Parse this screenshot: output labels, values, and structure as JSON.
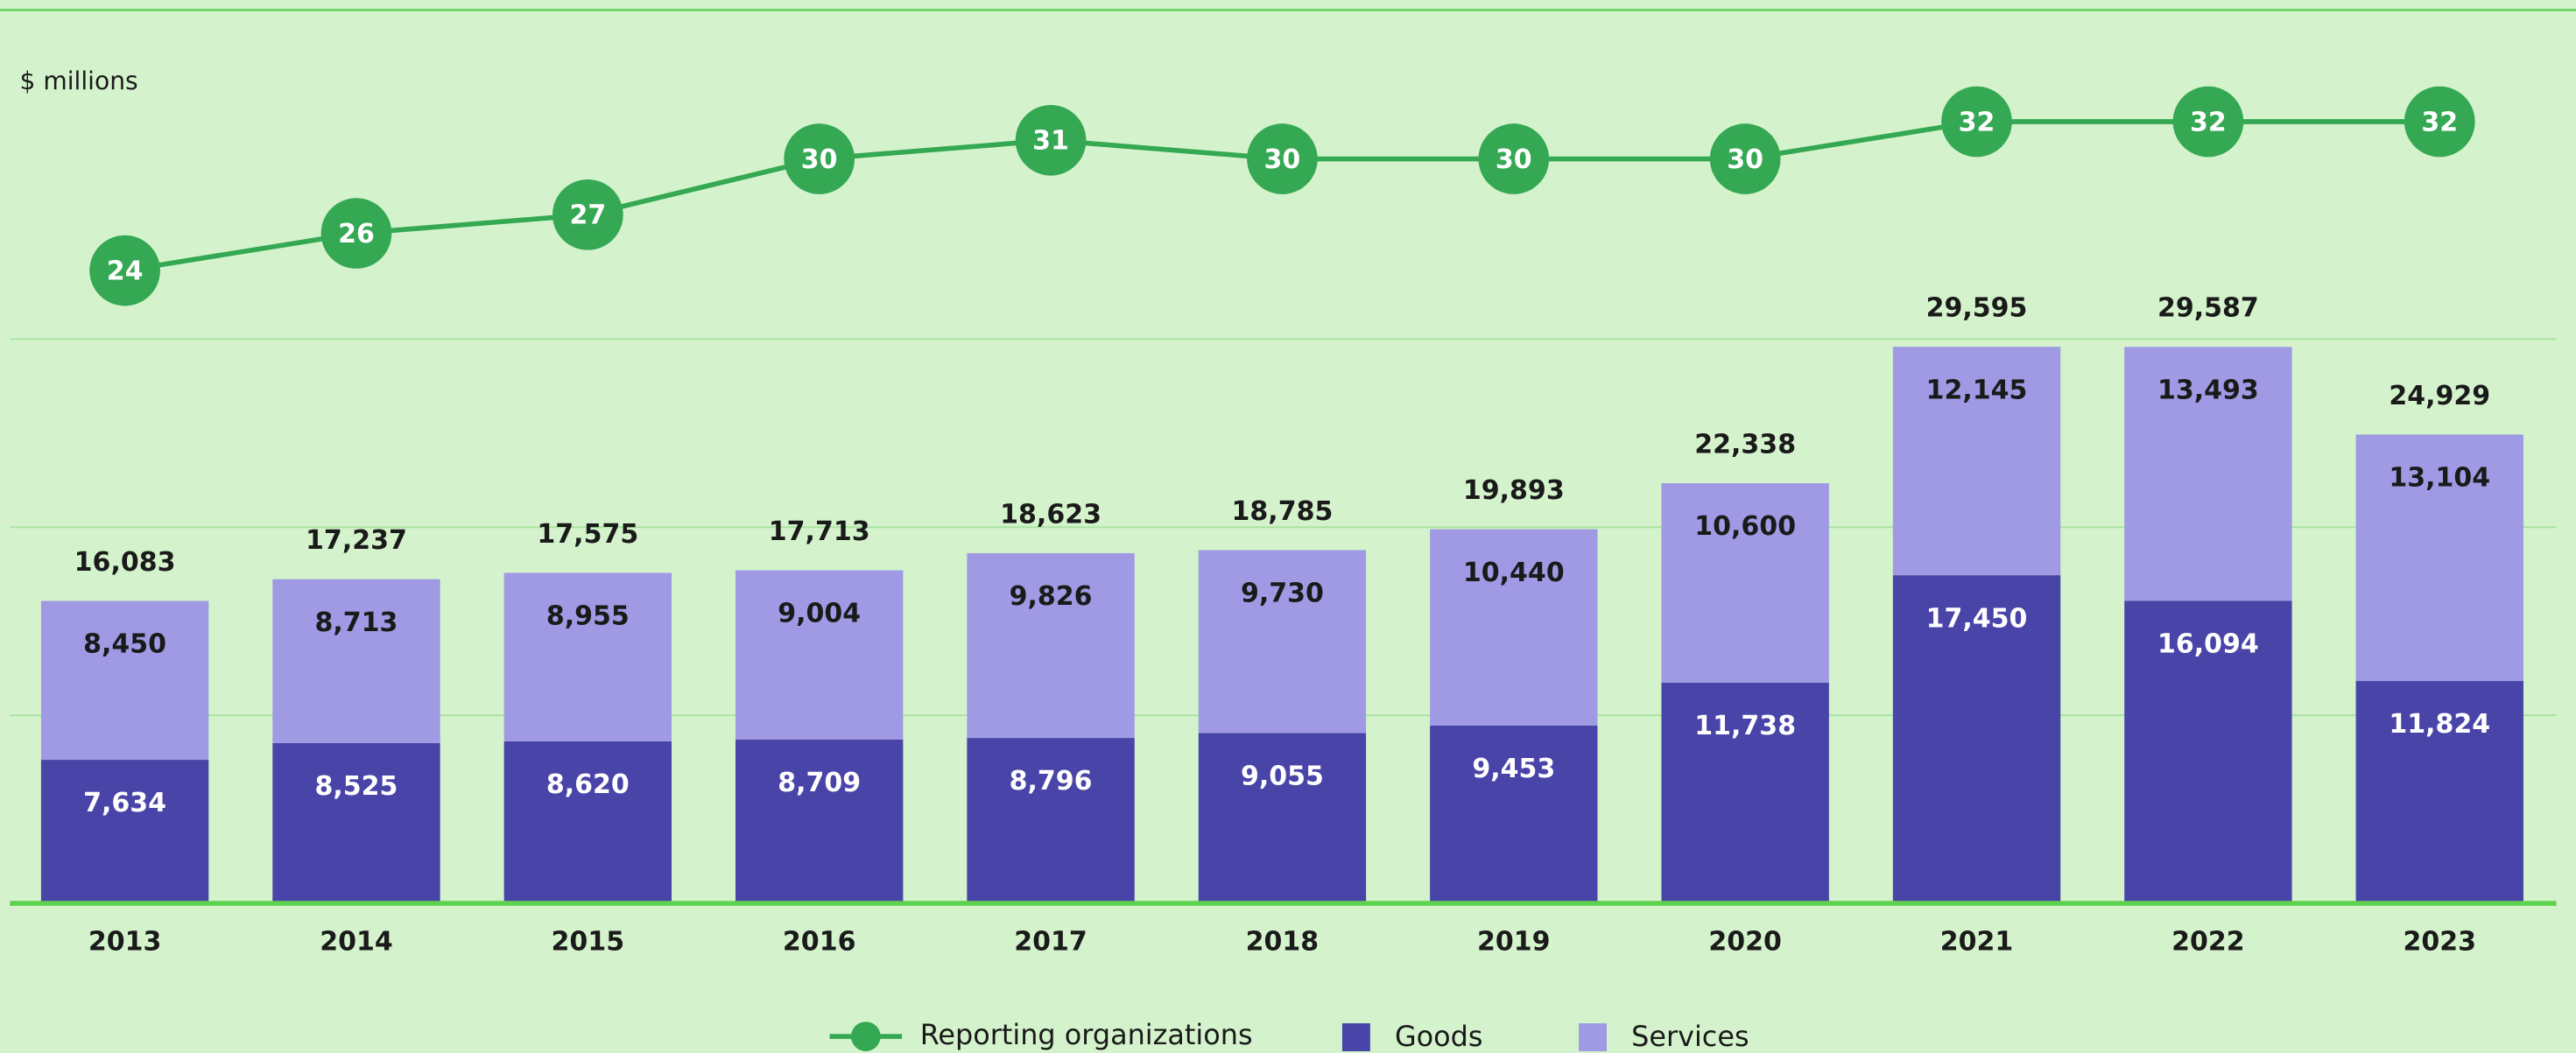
{
  "chart_data": {
    "type": "stacked-bar-line",
    "ylabel": "$ millions",
    "categories": [
      "2013",
      "2014",
      "2015",
      "2016",
      "2017",
      "2018",
      "2019",
      "2020",
      "2021",
      "2022",
      "2023"
    ],
    "series": [
      {
        "name": "Reporting organizations",
        "type": "line",
        "axis": "y2",
        "color": "#35a853",
        "values": [
          24,
          26,
          27,
          30,
          31,
          30,
          30,
          30,
          32,
          32,
          32
        ]
      },
      {
        "name": "Goods",
        "type": "bar",
        "color": "#4944a8",
        "values": [
          7634,
          8525,
          8620,
          8709,
          8796,
          9055,
          9453,
          11738,
          17450,
          16094,
          11824
        ],
        "value_labels": [
          "7,634",
          "8,525",
          "8,620",
          "8,709",
          "8,796",
          "9,055",
          "9,453",
          "11,738",
          "17,450",
          "16,094",
          "11,824"
        ]
      },
      {
        "name": "Services",
        "type": "bar",
        "color": "#9f9ae3",
        "values": [
          8450,
          8713,
          8955,
          9004,
          9826,
          9730,
          10440,
          10600,
          12145,
          13493,
          13104
        ],
        "value_labels": [
          "8,450",
          "8,713",
          "8,955",
          "9,004",
          "9,826",
          "9,730",
          "10,440",
          "10,600",
          "12,145",
          "13,493",
          "13,104"
        ]
      }
    ],
    "totals": [
      16083,
      17237,
      17575,
      17713,
      18623,
      18785,
      19893,
      22338,
      29595,
      29587,
      24929
    ],
    "totals_labels": [
      "16,083",
      "17,237",
      "17,575",
      "17,713",
      "18,623",
      "18,785",
      "19,893",
      "22,338",
      "29,595",
      "29,587",
      "24,929"
    ],
    "ylim": [
      0,
      47500
    ],
    "yticks": [
      0,
      10000,
      20000,
      30000
    ],
    "y2lim": [
      -10,
      38
    ],
    "grid": true,
    "legend": "bottom"
  }
}
